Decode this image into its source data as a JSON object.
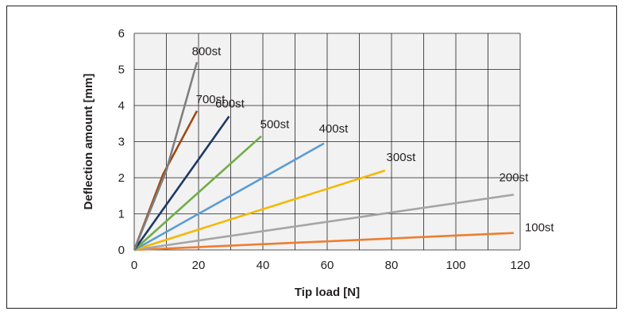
{
  "chart_data": {
    "type": "line",
    "xlabel": "Tip load [N]",
    "ylabel": "Deflection amount [mm]",
    "xlim": [
      0,
      120
    ],
    "ylim": [
      0,
      6
    ],
    "xticks": [
      "0",
      "20",
      "40",
      "60",
      "80",
      "100",
      "120"
    ],
    "yticks": [
      "0",
      "1",
      "2",
      "3",
      "4",
      "5",
      "6"
    ],
    "grid": true,
    "plot_background": "#f2f2f2",
    "grid_color": "#231f20",
    "series": [
      {
        "name": "100st",
        "color": "#ed7d31",
        "x": [
          0,
          118
        ],
        "y": [
          0,
          0.47
        ]
      },
      {
        "name": "200st",
        "color": "#a5a5a5",
        "x": [
          0,
          118
        ],
        "y": [
          0,
          1.53
        ]
      },
      {
        "name": "300st",
        "color": "#f5b800",
        "x": [
          0,
          78
        ],
        "y": [
          0,
          2.2
        ]
      },
      {
        "name": "400st",
        "color": "#5b9bd5",
        "x": [
          0,
          59
        ],
        "y": [
          0,
          2.95
        ]
      },
      {
        "name": "500st",
        "color": "#70ad47",
        "x": [
          0,
          39.5
        ],
        "y": [
          0,
          3.15
        ]
      },
      {
        "name": "600st",
        "color": "#1f3864",
        "x": [
          0,
          29.5
        ],
        "y": [
          0,
          3.7
        ]
      },
      {
        "name": "700st",
        "color": "#9e480e",
        "x": [
          0,
          9,
          19.5
        ],
        "y": [
          0,
          2.1,
          3.85
        ]
      },
      {
        "name": "800st",
        "color": "#7f7f7f",
        "x": [
          0,
          10,
          19.5
        ],
        "y": [
          0,
          2.2,
          5.2
        ]
      }
    ]
  }
}
